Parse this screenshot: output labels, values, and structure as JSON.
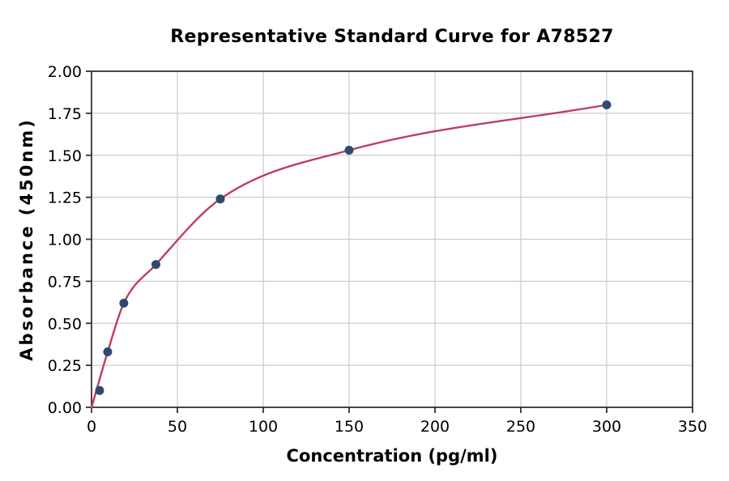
{
  "chart_data": {
    "type": "scatter",
    "title": "Representative Standard Curve for A78527",
    "xlabel": "Concentration (pg/ml)",
    "ylabel": "Absorbance (450nm)",
    "xlim": [
      0,
      350
    ],
    "ylim": [
      0.0,
      2.0
    ],
    "x_tick_labels": [
      "0",
      "50",
      "100",
      "150",
      "200",
      "250",
      "300",
      "350"
    ],
    "y_tick_labels": [
      "0.00",
      "0.25",
      "0.50",
      "0.75",
      "1.00",
      "1.25",
      "1.50",
      "1.75",
      "2.00"
    ],
    "grid": true,
    "legend_position": "none",
    "colors": {
      "marker": "#2E4A6F",
      "fit_line": "#C13B63",
      "grid_line": "#CCCCCC",
      "spine": "#333333",
      "background": "#FFFFFF"
    },
    "series": [
      {
        "name": "standard-points",
        "type": "scatter",
        "points": [
          {
            "x": 4.7,
            "y": 0.1
          },
          {
            "x": 9.4,
            "y": 0.33
          },
          {
            "x": 18.8,
            "y": 0.62
          },
          {
            "x": 37.5,
            "y": 0.85
          },
          {
            "x": 75,
            "y": 1.24
          },
          {
            "x": 150,
            "y": 1.53
          },
          {
            "x": 300,
            "y": 1.8
          }
        ]
      },
      {
        "name": "4pl-fit-curve",
        "type": "line",
        "start_at_origin": true,
        "anchor_points_from_index": 1
      }
    ]
  }
}
